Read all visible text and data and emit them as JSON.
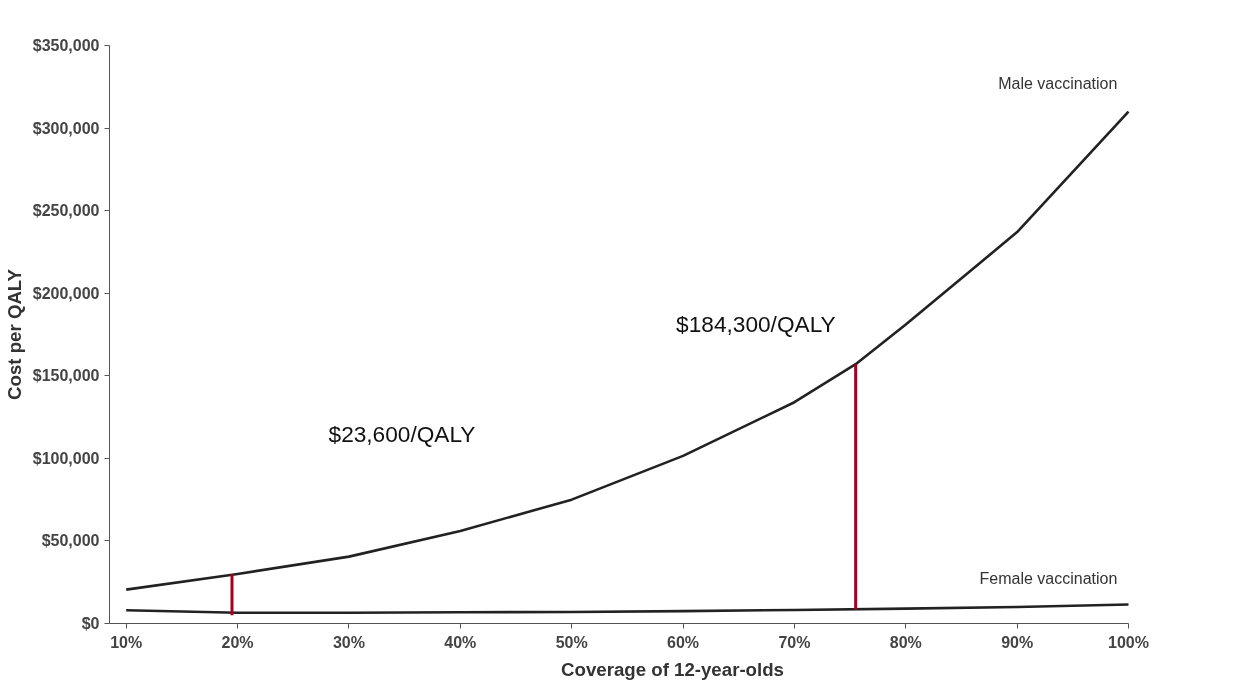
{
  "chart_data": {
    "type": "line",
    "xlabel": "Coverage of 12-year-olds",
    "ylabel": "Cost per QALY",
    "xlim": [
      8.5,
      100
    ],
    "ylim": [
      0,
      350000
    ],
    "xticks": [
      {
        "value": 10,
        "label": "10%"
      },
      {
        "value": 20,
        "label": "20%"
      },
      {
        "value": 30,
        "label": "30%"
      },
      {
        "value": 40,
        "label": "40%"
      },
      {
        "value": 50,
        "label": "50%"
      },
      {
        "value": 60,
        "label": "60%"
      },
      {
        "value": 70,
        "label": "70%"
      },
      {
        "value": 80,
        "label": "80%"
      },
      {
        "value": 90,
        "label": "90%"
      },
      {
        "value": 100,
        "label": "100%"
      }
    ],
    "yticks": [
      {
        "value": 0,
        "label": "$0"
      },
      {
        "value": 50000,
        "label": "$50,000"
      },
      {
        "value": 100000,
        "label": "$100,000"
      },
      {
        "value": 150000,
        "label": "$150,000"
      },
      {
        "value": 200000,
        "label": "$200,000"
      },
      {
        "value": 250000,
        "label": "$250,000"
      },
      {
        "value": 300000,
        "label": "$300,000"
      },
      {
        "value": 350000,
        "label": "$350,000"
      }
    ],
    "grid": false,
    "marker": "none",
    "line_style": "solid",
    "series": [
      {
        "name": "Male vaccination",
        "color": "#222222",
        "x": [
          10,
          20,
          30,
          40,
          50,
          60,
          70,
          75.5,
          80,
          90,
          100
        ],
        "values": [
          20500,
          30000,
          40500,
          56000,
          75000,
          101500,
          134000,
          157000,
          181000,
          237000,
          310000
        ]
      },
      {
        "name": "Female vaccination",
        "color": "#222222",
        "x": [
          10,
          20,
          30,
          40,
          50,
          60,
          70,
          80,
          90,
          100
        ],
        "values": [
          8000,
          6500,
          6500,
          6800,
          7000,
          7500,
          8200,
          9000,
          10000,
          11500
        ]
      },
      {
        "color": "#a50021",
        "x": [
          19.5,
          19.5
        ],
        "values": [
          5000,
          30000
        ]
      },
      {
        "color": "#a50021",
        "x": [
          75.5,
          75.5
        ],
        "values": [
          8500,
          157000
        ]
      }
    ],
    "annotations": [
      "$23,600/QALY",
      "$184,300/QALY"
    ]
  }
}
